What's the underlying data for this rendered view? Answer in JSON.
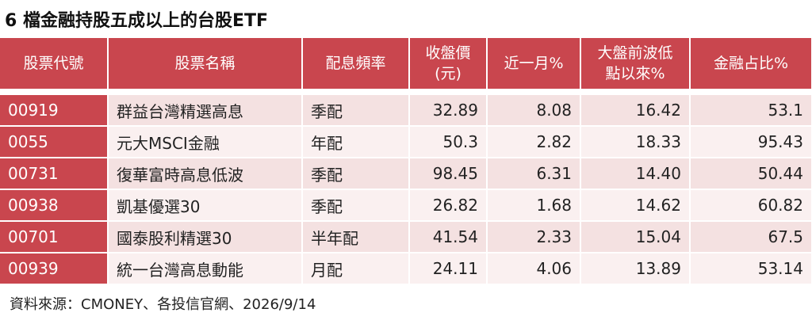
{
  "title": "6 檔金融持股五成以上的台股ETF",
  "table": {
    "header": [
      "股票代號",
      "股票名稱",
      "配息頻率",
      "收盤價\n(元)",
      "近一月%",
      "大盤前波低\n點以來%",
      "金融占比%"
    ],
    "rows": [
      [
        "00919",
        "群益台灣精選高息",
        "季配",
        "32.89",
        "8.08",
        "16.42",
        "53.1"
      ],
      [
        "0055",
        "元大MSCI金融",
        "年配",
        "50.3",
        "2.82",
        "18.33",
        "95.43"
      ],
      [
        "00731",
        "復華富時高息低波",
        "季配",
        "98.45",
        "6.31",
        "14.40",
        "50.44"
      ],
      [
        "00938",
        "凱基優選30",
        "季配",
        "26.82",
        "1.68",
        "14.62",
        "60.82"
      ],
      [
        "00701",
        "國泰股利精選30",
        "半年配",
        "41.54",
        "2.33",
        "15.04",
        "67.5"
      ],
      [
        "00939",
        "統一台灣高息動能",
        "月配",
        "24.11",
        "4.06",
        "13.89",
        "53.14"
      ]
    ]
  },
  "source": "資料來源：CMONEY、各投信官網、2026/9/14"
}
